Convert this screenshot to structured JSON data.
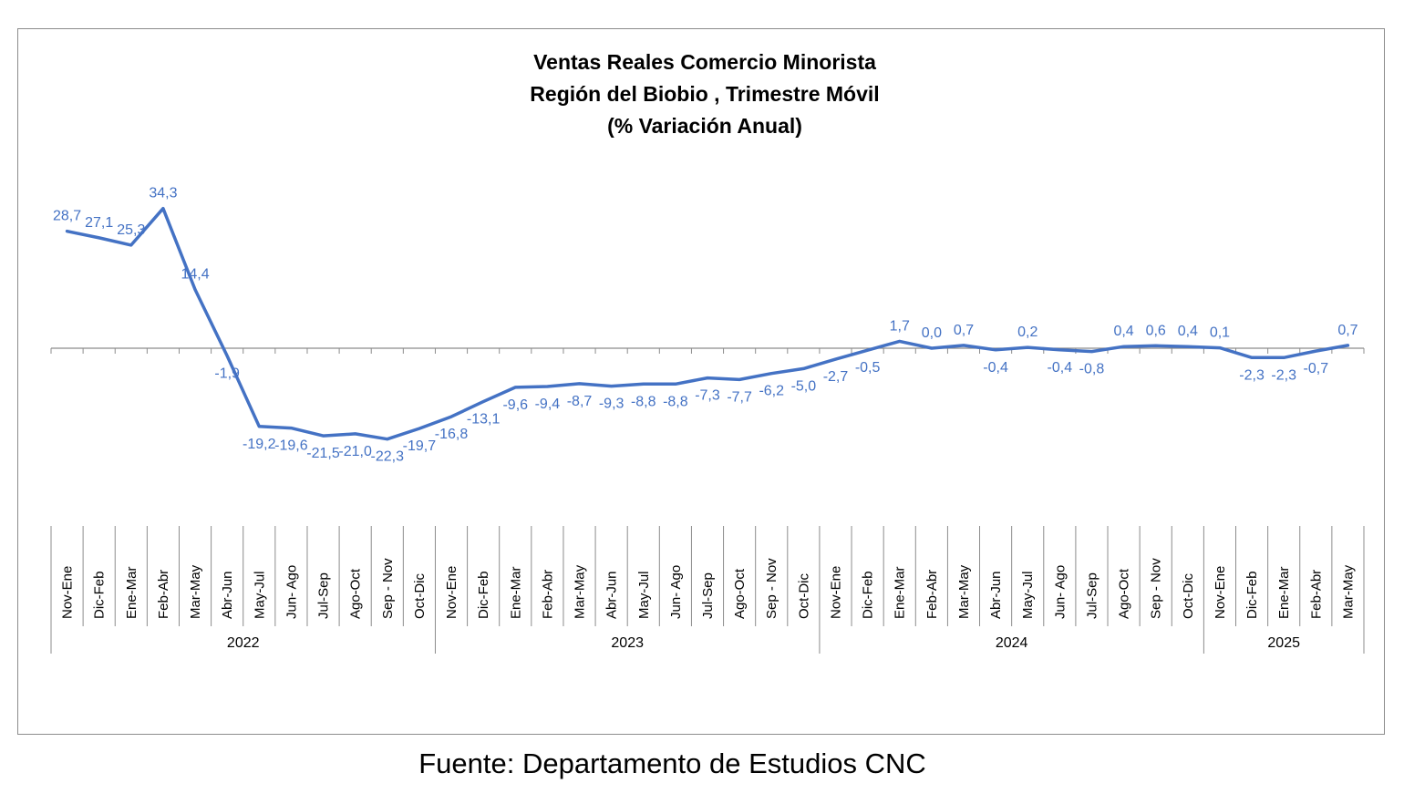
{
  "chart_data": {
    "type": "line",
    "title": [
      "Ventas Reales Comercio Minorista",
      "Región del Biobio , Trimestre Móvil",
      "(% Variación Anual)"
    ],
    "categories": [
      "Nov-Ene",
      "Dic-Feb",
      "Ene-Mar",
      "Feb-Abr",
      "Mar-May",
      "Abr-Jun",
      "May-Jul",
      "Jun- Ago",
      "Jul-Sep",
      "Ago-Oct",
      "Sep - Nov",
      "Oct-Dic",
      "Nov-Ene",
      "Dic-Feb",
      "Ene-Mar",
      "Feb-Abr",
      "Mar-May",
      "Abr-Jun",
      "May-Jul",
      "Jun- Ago",
      "Jul-Sep",
      "Ago-Oct",
      "Sep - Nov",
      "Oct-Dic",
      "Nov-Ene",
      "Dic-Feb",
      "Ene-Mar",
      "Feb-Abr",
      "Mar-May",
      "Abr-Jun",
      "May-Jul",
      "Jun- Ago",
      "Jul-Sep",
      "Ago-Oct",
      "Sep - Nov",
      "Oct-Dic",
      "Nov-Ene",
      "Dic-Feb",
      "Ene-Mar",
      "Feb-Abr",
      "Mar-May"
    ],
    "year_groups": [
      {
        "label": "2022",
        "start": 0,
        "count": 12
      },
      {
        "label": "2023",
        "start": 12,
        "count": 12
      },
      {
        "label": "2024",
        "start": 24,
        "count": 12
      },
      {
        "label": "2025",
        "start": 36,
        "count": 5
      }
    ],
    "series": [
      {
        "values": [
          28.7,
          27.1,
          25.3,
          34.3,
          14.4,
          -1.9,
          -19.2,
          -19.6,
          -21.5,
          -21.0,
          -22.3,
          -19.7,
          -16.8,
          -13.1,
          -9.6,
          -9.4,
          -8.7,
          -9.3,
          -8.8,
          -8.8,
          -7.3,
          -7.7,
          -6.2,
          -5.0,
          -2.7,
          -0.5,
          1.7,
          0.0,
          0.7,
          -0.4,
          0.2,
          -0.4,
          -0.8,
          0.4,
          0.6,
          0.4,
          0.1,
          -2.3,
          -2.3,
          -0.7,
          0.7
        ],
        "labels": [
          "28,7",
          "27,1",
          "25,3",
          "34,3",
          "14,4",
          "-1,9",
          "-19,2",
          "-19,6",
          "-21,5",
          "-21,0",
          "-22,3",
          "-19,7",
          "-16,8",
          "-13,1",
          "-9,6",
          "-9,4",
          "-8,7",
          "-9,3",
          "-8,8",
          "-8,8",
          "-7,3",
          "-7,7",
          "-6,2",
          "-5,0",
          "-2,7",
          "-0,5",
          "1,7",
          "0,0",
          "0,7",
          "-0,4",
          "0,2",
          "-0,4",
          "-0,8",
          "0,4",
          "0,6",
          "0,4",
          "0,1",
          "-2,3",
          "-2,3",
          "-0,7",
          "0,7"
        ],
        "color": "#4472c4"
      }
    ],
    "ylim": [
      -45,
      50
    ],
    "grid": false,
    "legend": "none",
    "source": "Fuente: Departamento de Estudios CNC"
  }
}
